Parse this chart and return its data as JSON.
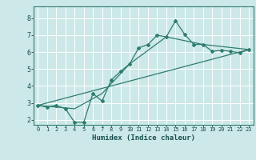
{
  "title": "",
  "xlabel": "Humidex (Indice chaleur)",
  "ylabel": "",
  "background_color": "#cce8e8",
  "grid_color": "#b0d8d8",
  "line_color": "#2e7d6e",
  "xlim": [
    -0.5,
    23.5
  ],
  "ylim": [
    1.7,
    8.7
  ],
  "xticks": [
    0,
    1,
    2,
    3,
    4,
    5,
    6,
    7,
    8,
    9,
    10,
    11,
    12,
    13,
    14,
    15,
    16,
    17,
    18,
    19,
    20,
    21,
    22,
    23
  ],
  "yticks": [
    2,
    3,
    4,
    5,
    6,
    7,
    8
  ],
  "line1_x": [
    0,
    1,
    2,
    3,
    4,
    5,
    6,
    7,
    8,
    9,
    10,
    11,
    12,
    13,
    14,
    15,
    16,
    17,
    18,
    19,
    20,
    21,
    22,
    23
  ],
  "line1_y": [
    2.85,
    2.75,
    2.85,
    2.65,
    1.85,
    1.85,
    3.55,
    3.1,
    4.35,
    4.85,
    5.3,
    6.25,
    6.45,
    7.0,
    6.9,
    7.85,
    7.05,
    6.45,
    6.45,
    6.05,
    6.1,
    6.05,
    5.95,
    6.15
  ],
  "line2_x": [
    0,
    23
  ],
  "line2_y": [
    2.85,
    6.15
  ],
  "line3_x": [
    0,
    4,
    7,
    10,
    14,
    18,
    23
  ],
  "line3_y": [
    2.85,
    2.65,
    3.55,
    5.3,
    6.9,
    6.45,
    6.15
  ]
}
